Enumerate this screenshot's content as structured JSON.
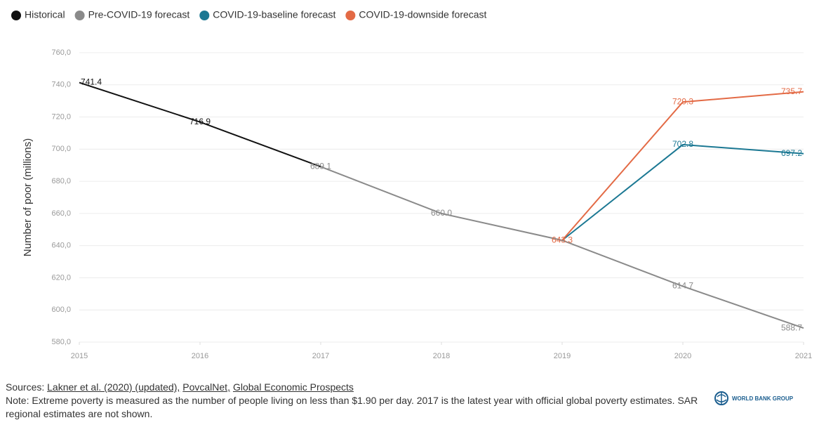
{
  "chart_data": {
    "type": "line",
    "ylabel": "Number of poor (millions)",
    "xlim": [
      2015,
      2021
    ],
    "xticks": [
      2015,
      2016,
      2017,
      2018,
      2019,
      2020,
      2021
    ],
    "ylim": [
      580,
      760
    ],
    "yticks": [
      {
        "value": 580,
        "label": "580,0"
      },
      {
        "value": 600,
        "label": "600,0"
      },
      {
        "value": 620,
        "label": "620,0"
      },
      {
        "value": 640,
        "label": "640,0"
      },
      {
        "value": 660,
        "label": "660,0"
      },
      {
        "value": 680,
        "label": "680,0"
      },
      {
        "value": 700,
        "label": "700,0"
      },
      {
        "value": 720,
        "label": "720,0"
      },
      {
        "value": 740,
        "label": "740,0"
      },
      {
        "value": 760,
        "label": "760,0"
      }
    ],
    "grid": true,
    "legend": "top-left",
    "series": [
      {
        "name": "Historical",
        "color": "#111111",
        "x": [
          2015,
          2016,
          2017
        ],
        "values": [
          741.4,
          716.9,
          689.1
        ],
        "value_labels": [
          "741.4",
          "716.9",
          null
        ]
      },
      {
        "name": "Pre-COVID-19 forecast",
        "color": "#8a8a8a",
        "x": [
          2017,
          2018,
          2019,
          2020,
          2021
        ],
        "values": [
          689.1,
          660.0,
          643.3,
          614.7,
          588.7
        ],
        "value_labels": [
          "689.1",
          "660.0",
          null,
          "614.7",
          "588.7"
        ]
      },
      {
        "name": "COVID-19-baseline forecast",
        "color": "#1b7893",
        "x": [
          2019,
          2020,
          2021
        ],
        "values": [
          643.3,
          702.8,
          697.2
        ],
        "value_labels": [
          null,
          "702.8",
          "697.2"
        ]
      },
      {
        "name": "COVID-19-downside forecast",
        "color": "#e36a45",
        "x": [
          2019,
          2020,
          2021
        ],
        "values": [
          643.3,
          729.3,
          735.7
        ],
        "value_labels": [
          "643.3",
          "729.3",
          "735.7"
        ]
      }
    ]
  },
  "footer": {
    "sources_label": "Sources:",
    "sources": [
      "Lakner et al. (2020) (updated),",
      "PovcalNet,",
      "Global Economic Prospects"
    ],
    "note": "Note: Extreme poverty is measured as the number of people living on less than $1.90 per day. 2017 is the latest year with official global poverty estimates. SAR regional estimates are not shown.",
    "logo": "WORLD BANK GROUP"
  }
}
